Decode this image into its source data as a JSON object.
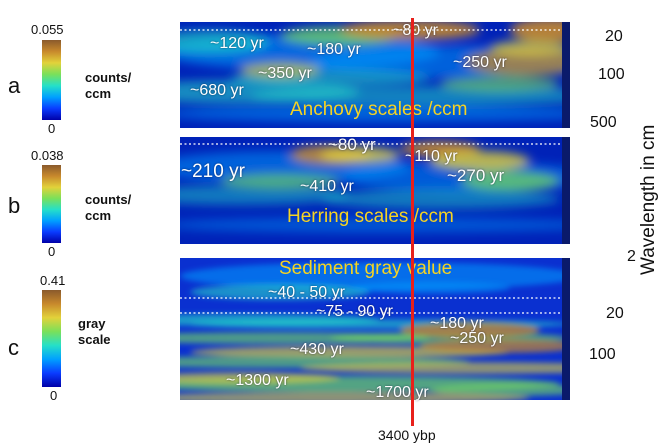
{
  "chart_data": [
    {
      "type": "heatmap",
      "panel_label": "a",
      "title": "Anchovy scales /ccm",
      "colorbar": {
        "min": "0",
        "max": "0.055",
        "unit": "counts/ ccm"
      },
      "yticks": [
        "20",
        "100",
        "500"
      ],
      "periods": [
        {
          "label": "~80 yr",
          "value": 80
        },
        {
          "label": "~120 yr",
          "value": 120
        },
        {
          "label": "~180 yr",
          "value": 180
        },
        {
          "label": "~250 yr",
          "value": 250
        },
        {
          "label": "~350 yr",
          "value": 350
        },
        {
          "label": "~680 yr",
          "value": 680
        }
      ]
    },
    {
      "type": "heatmap",
      "panel_label": "b",
      "title": "Herring scales /ccm",
      "colorbar": {
        "min": "0",
        "max": "0.038",
        "unit": "counts/ ccm"
      },
      "yticks": [],
      "periods": [
        {
          "label": "~80 yr",
          "value": 80
        },
        {
          "label": "~110 yr",
          "value": 110
        },
        {
          "label": "~210 yr",
          "value": 210
        },
        {
          "label": "~270 yr",
          "value": 270
        },
        {
          "label": "~410 yr",
          "value": 410
        }
      ]
    },
    {
      "type": "heatmap",
      "panel_label": "c",
      "title": "Sediment gray value",
      "colorbar": {
        "min": "0",
        "max": "0.41",
        "unit": "gray scale"
      },
      "yticks": [
        "2",
        "20",
        "100"
      ],
      "periods": [
        {
          "label": "~40 - 50 yr",
          "value": 45
        },
        {
          "label": "~75 - 90 yr",
          "value": 82
        },
        {
          "label": "~180 yr",
          "value": 180
        },
        {
          "label": "~250 yr",
          "value": 250
        },
        {
          "label": "~430 yr",
          "value": 430
        },
        {
          "label": "~1300 yr",
          "value": 1300
        },
        {
          "label": "~1700 yr",
          "value": 1700
        }
      ]
    }
  ],
  "ylabel": "Wavelength in cm",
  "marker": "3400 ybp",
  "colors": {
    "red_line": "#e8201b",
    "title_text": "#f5d323",
    "annotation_text": "#ffffff",
    "colormap": [
      "#0000a8",
      "#0a3cff",
      "#00a0ff",
      "#25e0c8",
      "#7ae05a",
      "#e2d23a",
      "#c8892c",
      "#8a5a2c"
    ]
  }
}
